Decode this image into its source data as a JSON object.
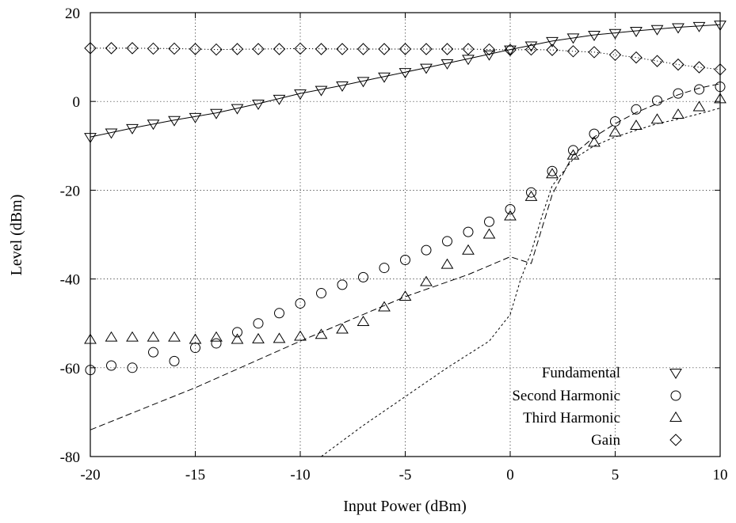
{
  "chart_data": {
    "type": "line",
    "xlabel": "Input Power (dBm)",
    "ylabel": "Level (dBm)",
    "xlim": [
      -20,
      10
    ],
    "ylim": [
      -80,
      20
    ],
    "xticks": [
      -20,
      -15,
      -10,
      -5,
      0,
      5,
      10
    ],
    "yticks": [
      -80,
      -60,
      -40,
      -20,
      0,
      20
    ],
    "xtick_labels": [
      "-20",
      "-15",
      "-10",
      "-5",
      "0",
      "5",
      "10"
    ],
    "ytick_labels": [
      "-80",
      "-60",
      "-40",
      "-20",
      "0",
      "20"
    ],
    "grid": true,
    "legend_position": "bottom-right",
    "series": [
      {
        "name": "Fundamental",
        "marker": "triangle-down",
        "x": [
          -20,
          -19,
          -18,
          -17,
          -16,
          -15,
          -14,
          -13,
          -12,
          -11,
          -10,
          -9,
          -8,
          -7,
          -6,
          -5,
          -4,
          -3,
          -2,
          -1,
          0,
          1,
          2,
          3,
          4,
          5,
          6,
          7,
          8,
          9,
          10
        ],
        "y": [
          -8,
          -7,
          -6,
          -5,
          -4.2,
          -3.5,
          -2.6,
          -1.5,
          -0.5,
          0.6,
          1.8,
          2.6,
          3.6,
          4.6,
          5.6,
          6.6,
          7.6,
          8.6,
          9.6,
          10.6,
          11.7,
          12.6,
          13.6,
          14.4,
          15,
          15.4,
          15.9,
          16.3,
          16.7,
          17,
          17.3
        ]
      },
      {
        "name": "Second Harmonic",
        "marker": "circle",
        "x": [
          -20,
          -19,
          -18,
          -17,
          -16,
          -15,
          -14,
          -13,
          -12,
          -11,
          -10,
          -9,
          -8,
          -7,
          -6,
          -5,
          -4,
          -3,
          -2,
          -1,
          0,
          1,
          2,
          3,
          4,
          5,
          6,
          7,
          8,
          9,
          10
        ],
        "y": [
          -60.5,
          -59.5,
          -60,
          -56.5,
          -58.5,
          -55.5,
          -54.5,
          -52,
          -50,
          -47.7,
          -45.5,
          -43.2,
          -41.3,
          -39.6,
          -37.5,
          -35.7,
          -33.5,
          -31.5,
          -29.4,
          -27.1,
          -24.3,
          -20.5,
          -15.7,
          -11,
          -7.3,
          -4.5,
          -1.8,
          0.2,
          1.8,
          2.7,
          3.3
        ]
      },
      {
        "name": "Third Harmonic",
        "marker": "triangle-up",
        "x": [
          -20,
          -19,
          -18,
          -17,
          -16,
          -15,
          -14,
          -13,
          -12,
          -11,
          -10,
          -9,
          -8,
          -7,
          -6,
          -5,
          -4,
          -3,
          -2,
          -1,
          0,
          1,
          2,
          3,
          4,
          5,
          6,
          7,
          8,
          9,
          10
        ],
        "y": [
          -53.7,
          -53.2,
          -53.2,
          -53.2,
          -53.2,
          -53.7,
          -53.2,
          -53.7,
          -53.6,
          -53.5,
          -53,
          -52.6,
          -51.4,
          -49.7,
          -46.4,
          -44,
          -40.7,
          -36.8,
          -33.6,
          -30,
          -25.9,
          -21.5,
          -16.4,
          -12.2,
          -9.3,
          -7,
          -5.5,
          -4.1,
          -3,
          -1.3,
          0.5
        ]
      },
      {
        "name": "Gain",
        "marker": "diamond",
        "x": [
          -20,
          -19,
          -18,
          -17,
          -16,
          -15,
          -14,
          -13,
          -12,
          -11,
          -10,
          -9,
          -8,
          -7,
          -6,
          -5,
          -4,
          -3,
          -2,
          -1,
          0,
          1,
          2,
          3,
          4,
          5,
          6,
          7,
          8,
          9,
          10
        ],
        "y": [
          12,
          12,
          12,
          11.9,
          11.9,
          11.8,
          11.7,
          11.8,
          11.8,
          11.8,
          11.9,
          11.8,
          11.8,
          11.8,
          11.8,
          11.8,
          11.8,
          11.8,
          11.8,
          11.7,
          11.6,
          11.7,
          11.6,
          11.3,
          11.1,
          10.5,
          9.9,
          9.1,
          8.3,
          7.7,
          7.2
        ]
      }
    ],
    "fit_curves": [
      {
        "style": "solid",
        "x": [
          -20,
          -18,
          -16,
          -14,
          -12,
          -10,
          -8,
          -6,
          -4,
          -2,
          0,
          2,
          4,
          6,
          8,
          10
        ],
        "y": [
          -8,
          -6,
          -4.2,
          -2.6,
          -0.5,
          1.8,
          3.6,
          5.6,
          7.6,
          9.6,
          11.7,
          13.6,
          15,
          15.9,
          16.7,
          17.3
        ]
      },
      {
        "style": "dotted",
        "x": [
          -20,
          -18,
          -16,
          -14,
          -12,
          -10,
          -8,
          -6,
          -4,
          -2,
          0,
          1,
          2,
          3,
          4,
          5,
          6,
          7,
          8,
          9,
          10
        ],
        "y": [
          12,
          12,
          11.9,
          11.7,
          11.8,
          11.9,
          11.8,
          11.8,
          11.8,
          11.8,
          11.6,
          11.7,
          11.6,
          11.3,
          11.1,
          10.5,
          9.9,
          9.1,
          8.3,
          7.7,
          7.2
        ]
      },
      {
        "style": "dashed",
        "x": [
          -20,
          -15,
          -10,
          -5,
          -2,
          -1,
          0,
          1,
          2,
          3,
          4,
          5,
          6,
          7,
          8,
          9,
          10
        ],
        "y": [
          -74,
          -64.5,
          -54,
          -44,
          -39,
          -37,
          -35,
          -36.5,
          -21,
          -12,
          -8,
          -5,
          -2.5,
          -0.5,
          1.5,
          3,
          4
        ]
      },
      {
        "style": "short-dashed",
        "x": [
          -9,
          -7,
          -5,
          -3,
          -1,
          0,
          0.5,
          1,
          1.5,
          2,
          3,
          4,
          5,
          6,
          7,
          8,
          9,
          10
        ],
        "y": [
          -80,
          -73,
          -66.5,
          -60,
          -54,
          -48,
          -40,
          -34,
          -26,
          -19,
          -13,
          -10,
          -8,
          -6.5,
          -5,
          -4,
          -2.8,
          -1.5
        ]
      }
    ]
  }
}
